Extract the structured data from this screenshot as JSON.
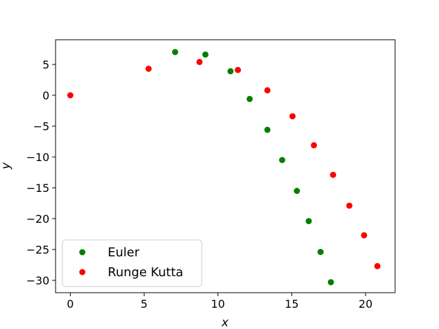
{
  "chart_data": {
    "type": "scatter",
    "title": "",
    "xlabel": "x",
    "ylabel": "y",
    "xlim": [
      -1,
      22
    ],
    "ylim": [
      -32,
      9
    ],
    "x_ticks": [
      0,
      5,
      10,
      15,
      20
    ],
    "y_ticks": [
      5,
      0,
      -5,
      -10,
      -15,
      -20,
      -25,
      -30
    ],
    "x_tick_labels": [
      "0",
      "5",
      "10",
      "15",
      "20"
    ],
    "y_tick_labels": [
      "5",
      "0",
      "−5",
      "−10",
      "−15",
      "−20",
      "−25",
      "−30"
    ],
    "grid": false,
    "legend_position": "lower-left",
    "series": [
      {
        "name": "Euler",
        "color": "#008000",
        "points": [
          {
            "x": 7.1,
            "y": 7.0
          },
          {
            "x": 9.15,
            "y": 6.6
          },
          {
            "x": 10.85,
            "y": 3.9
          },
          {
            "x": 12.15,
            "y": -0.6
          },
          {
            "x": 13.35,
            "y": -5.6
          },
          {
            "x": 14.35,
            "y": -10.5
          },
          {
            "x": 15.35,
            "y": -15.5
          },
          {
            "x": 16.15,
            "y": -20.4
          },
          {
            "x": 16.95,
            "y": -25.4
          },
          {
            "x": 17.65,
            "y": -30.3
          }
        ]
      },
      {
        "name": "Runge Kutta",
        "color": "#ff0000",
        "points": [
          {
            "x": 0.0,
            "y": 0.0
          },
          {
            "x": 5.3,
            "y": 4.3
          },
          {
            "x": 8.75,
            "y": 5.4
          },
          {
            "x": 11.35,
            "y": 4.1
          },
          {
            "x": 13.35,
            "y": 0.8
          },
          {
            "x": 15.05,
            "y": -3.4
          },
          {
            "x": 16.5,
            "y": -8.1
          },
          {
            "x": 17.8,
            "y": -12.9
          },
          {
            "x": 18.9,
            "y": -17.9
          },
          {
            "x": 19.9,
            "y": -22.7
          },
          {
            "x": 20.8,
            "y": -27.7
          }
        ]
      }
    ]
  }
}
